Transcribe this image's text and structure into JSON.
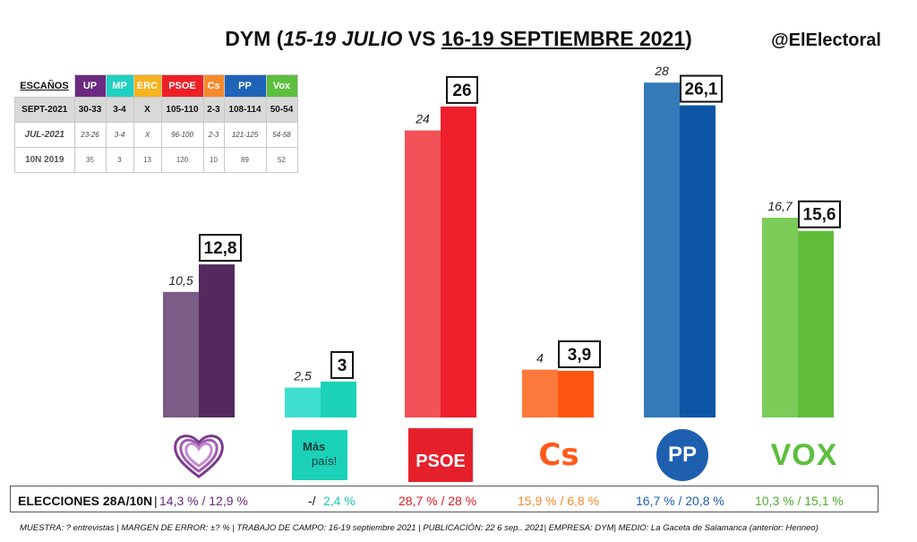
{
  "title": {
    "pollster": "DYM (",
    "old_dates": "15-19 JULIO",
    "vs": " VS ",
    "new_dates": "16-19 SEPTIEMBRE 2021",
    "close": ")"
  },
  "handle": "@ElElectoral",
  "seats_table": {
    "label": "ESCAÑOS",
    "parties": [
      {
        "name": "UP",
        "color": "#6a2b80"
      },
      {
        "name": "MP",
        "color": "#1fd1c0"
      },
      {
        "name": "ERC",
        "color": "#f7b31c"
      },
      {
        "name": "PSOE",
        "color": "#ee2027"
      },
      {
        "name": "Cs",
        "color": "#f7892c"
      },
      {
        "name": "PP",
        "color": "#1f63b8"
      },
      {
        "name": "Vox",
        "color": "#5cbf3d"
      }
    ],
    "rows": [
      {
        "label": "SEPT-2021",
        "values": [
          "30-33",
          "3-4",
          "X",
          "105-110",
          "2-3",
          "108-114",
          "50-54"
        ]
      },
      {
        "label": "JUL-2021",
        "values": [
          "23-26",
          "3-4",
          "X",
          "96-100",
          "2-3",
          "121-125",
          "54-58"
        ]
      },
      {
        "label": "10N 2019",
        "values": [
          "35",
          "3",
          "13",
          "120",
          "10",
          "89",
          "52"
        ]
      }
    ]
  },
  "chart_data": {
    "type": "bar",
    "categories": [
      "UP",
      "Más País",
      "PSOE",
      "Cs",
      "PP",
      "Vox"
    ],
    "series": [
      {
        "name": "JUL-2021",
        "values": [
          10.5,
          2.5,
          24,
          4,
          28,
          16.7
        ],
        "labels": [
          "10,5",
          "2,5",
          "24",
          "4",
          "28",
          "16,7"
        ]
      },
      {
        "name": "SEPT-2021",
        "values": [
          12.8,
          3,
          26,
          3.9,
          26.1,
          15.6
        ],
        "labels": [
          "12,8",
          "3",
          "26",
          "3,9",
          "26,1",
          "15,6"
        ]
      }
    ],
    "colors": {
      "old": [
        "#7b5c86",
        "#3fdfcf",
        "#f25258",
        "#fd7a3c",
        "#347ab8",
        "#7ccc5a"
      ],
      "new": [
        "#542a5e",
        "#1bd2b8",
        "#ee1f2b",
        "#ff5510",
        "#0d56a5",
        "#61bc3a"
      ]
    },
    "ylim": [
      0,
      28
    ]
  },
  "logos": {
    "mp_line1": "Más",
    "mp_line2": "país!",
    "psoe": "PSOE",
    "cs": "Cs",
    "pp": "PP",
    "vox": "VOX"
  },
  "elections": {
    "label": "ELECCIONES 28A/10N",
    "items": [
      {
        "text": "14,3 % / 12,9 %",
        "color": "#6a2b80"
      },
      {
        "text": "-/",
        "color": "#111111"
      },
      {
        "text": "2,4 %",
        "color": "#1fc8b7"
      },
      {
        "text": "28,7  % / 28 %",
        "color": "#e21b23"
      },
      {
        "text": "15,9 % / 6,8 %",
        "color": "#f7892c"
      },
      {
        "text": "16,7 % / 20,8 %",
        "color": "#1f5fb0"
      },
      {
        "text": "10,3 % / 15,1 %",
        "color": "#4cae2e"
      }
    ]
  },
  "note": "MUESTRA: ? entrevistas | MARGEN DE ERROR: ±? % | TRABAJO DE CAMPO: 16-19 septiembre 2021 | PUBLICACIÓN: 22 6 sep.. 2021| EMPRESA: DYM| MEDIO: La Gaceta de Salamanca (anterior: Henneo)"
}
